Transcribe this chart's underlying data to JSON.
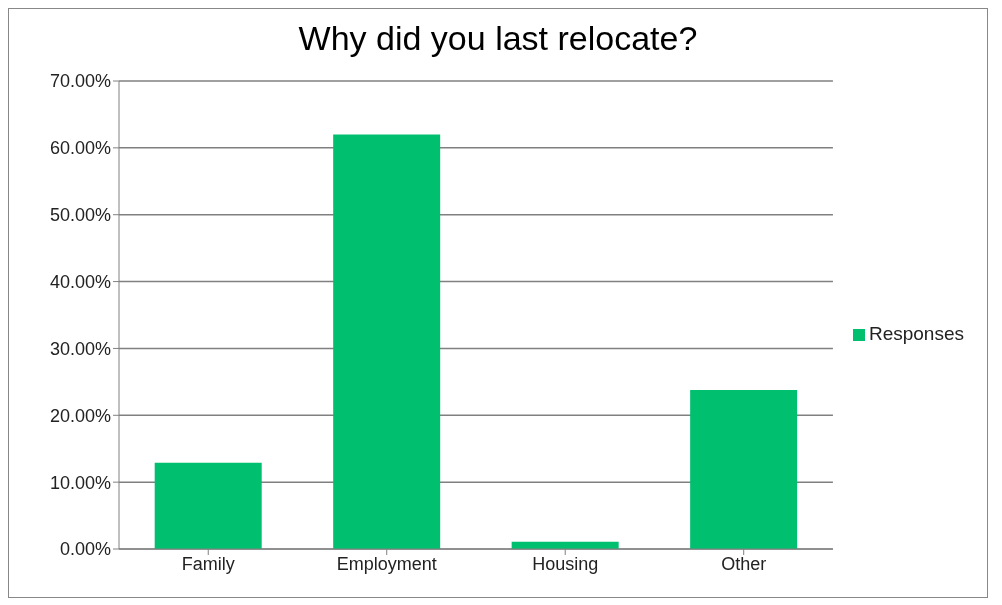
{
  "chart_data": {
    "type": "bar",
    "title": "Why did you last relocate?",
    "categories": [
      "Family",
      "Employment",
      "Housing",
      "Other"
    ],
    "series": [
      {
        "name": "Responses",
        "color": "#00bf6f",
        "values": [
          12.9,
          62.0,
          1.1,
          23.8
        ]
      }
    ],
    "ylim": [
      0,
      70
    ],
    "yticks": [
      {
        "value": 0,
        "label": "0.00%"
      },
      {
        "value": 10,
        "label": "10.00%"
      },
      {
        "value": 20,
        "label": "20.00%"
      },
      {
        "value": 30,
        "label": "30.00%"
      },
      {
        "value": 40,
        "label": "40.00%"
      },
      {
        "value": 50,
        "label": "50.00%"
      },
      {
        "value": 60,
        "label": "60.00%"
      },
      {
        "value": 70,
        "label": "70.00%"
      }
    ],
    "grid": "y",
    "legend": "right"
  }
}
